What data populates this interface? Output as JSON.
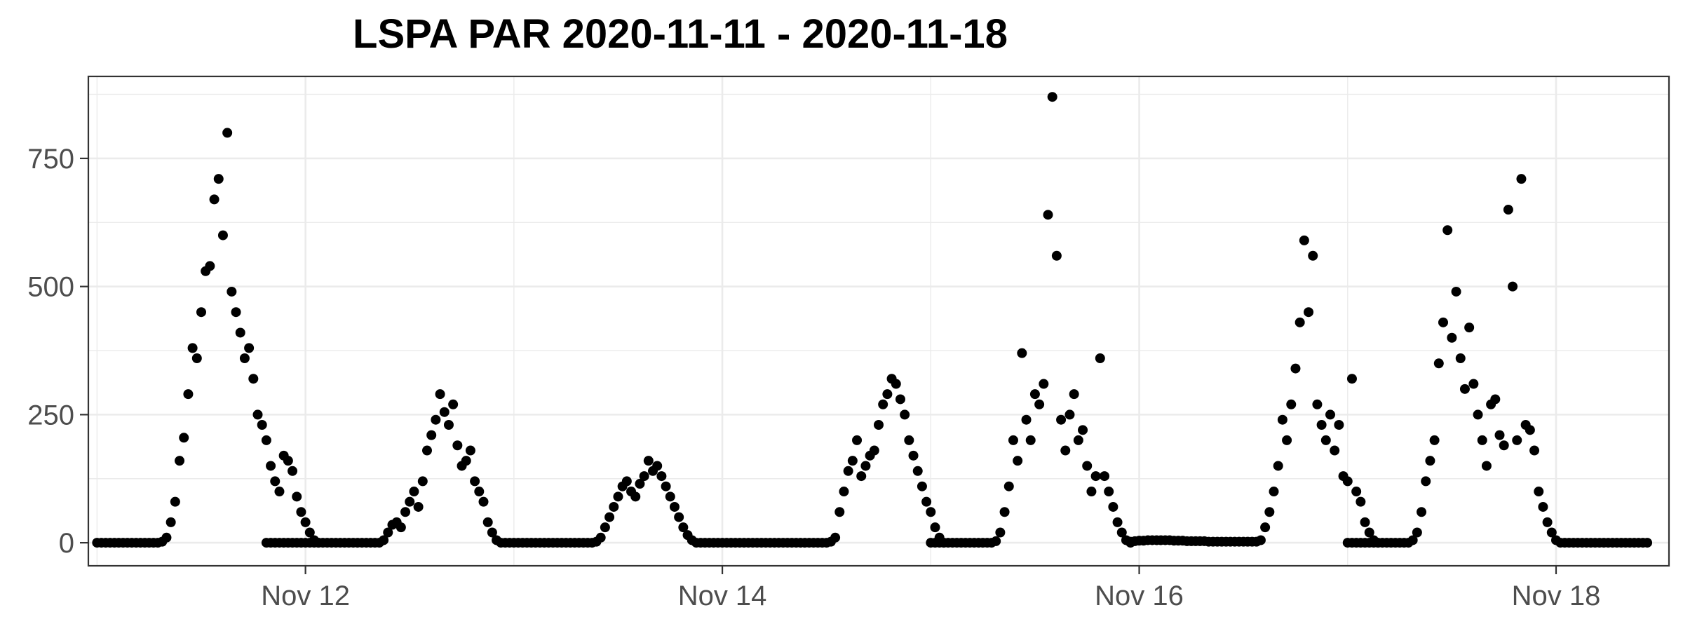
{
  "chart_data": {
    "type": "scatter",
    "title": "LSPA PAR 2020-11-11 - 2020-11-18",
    "xlabel": "",
    "ylabel": "",
    "x_axis": {
      "kind": "date",
      "range": [
        "2020-11-10T23:00",
        "2020-11-18T13:00"
      ],
      "ticks": [
        {
          "value": "2020-11-12",
          "label": "Nov 12"
        },
        {
          "value": "2020-11-14",
          "label": "Nov 14"
        },
        {
          "value": "2020-11-16",
          "label": "Nov 16"
        },
        {
          "value": "2020-11-18",
          "label": "Nov 18"
        }
      ]
    },
    "y_axis": {
      "range": [
        -45,
        910
      ],
      "ticks": [
        {
          "value": 0,
          "label": "0"
        },
        {
          "value": 250,
          "label": "250"
        },
        {
          "value": 500,
          "label": "500"
        },
        {
          "value": 750,
          "label": "750"
        }
      ]
    },
    "grid": true,
    "legend": "none",
    "point_color": "#000000",
    "series": [
      {
        "x_step_minutes": 30,
        "segments": [
          {
            "start": "2020-11-11T00:00",
            "y": [
              0,
              0,
              0,
              0,
              0,
              0,
              0,
              0,
              0,
              0,
              0,
              0,
              0,
              0,
              0,
              2,
              10,
              40,
              80,
              160,
              205,
              290,
              380,
              360,
              450,
              530,
              540,
              670,
              710,
              600,
              800,
              490,
              450,
              410,
              360,
              380,
              320,
              250,
              230,
              200,
              150,
              120,
              100,
              170,
              160,
              140,
              90,
              60,
              40,
              20,
              5,
              0
            ]
          },
          {
            "start": "2020-11-11T19:30",
            "y": [
              0,
              0,
              0,
              0,
              0,
              0,
              0,
              0,
              0,
              0,
              0,
              0,
              0,
              0,
              0,
              0,
              0,
              0,
              0,
              0,
              0,
              0,
              0,
              0,
              0,
              0,
              0,
              5,
              20,
              35,
              40,
              30,
              60,
              80,
              100,
              70,
              120,
              180,
              210,
              240,
              290,
              255,
              230,
              270,
              190,
              150,
              160,
              180,
              120,
              100,
              80,
              40,
              20,
              5,
              0
            ]
          },
          {
            "start": "2020-11-12T23:00",
            "y": [
              0,
              0,
              0,
              0,
              0,
              0,
              0,
              0,
              0,
              0,
              0,
              0,
              0,
              0,
              0,
              0,
              0,
              0,
              0,
              0,
              0,
              2,
              10,
              30,
              50,
              70,
              90,
              110,
              120,
              100,
              90,
              115,
              130,
              160,
              140,
              150,
              130,
              110,
              90,
              70,
              50,
              30,
              15,
              5,
              0
            ]
          },
          {
            "start": "2020-11-13T21:30",
            "y": [
              0,
              0,
              0,
              0,
              0,
              0,
              0,
              0,
              0,
              0,
              0,
              0,
              0,
              0,
              0,
              0,
              0,
              0,
              0,
              0,
              0,
              0,
              0,
              0,
              0,
              0,
              0,
              0,
              0,
              0,
              2,
              10,
              60,
              100,
              140,
              160,
              200,
              130,
              150,
              170,
              180,
              230,
              270,
              290,
              320,
              310,
              280,
              250,
              200,
              170,
              140,
              110,
              80,
              60,
              30,
              10,
              0
            ]
          },
          {
            "start": "2020-11-15T00:00",
            "y": [
              0,
              0,
              0,
              0,
              0,
              0,
              0,
              0,
              0,
              0,
              0,
              0,
              0,
              0,
              0,
              3,
              20,
              60,
              110,
              200,
              160,
              370,
              240,
              200,
              290,
              270,
              310,
              640,
              870,
              560,
              240,
              180,
              250,
              290,
              200,
              220,
              150,
              100,
              130,
              360,
              130,
              100,
              70,
              40,
              20,
              5,
              0
            ]
          },
          {
            "start": "2020-11-15T23:00",
            "y": [
              2,
              3,
              4,
              4,
              5,
              5,
              5,
              5,
              5,
              5,
              4,
              4,
              4,
              3,
              3,
              3,
              3,
              3,
              2,
              2,
              2,
              2,
              2,
              2,
              2,
              2,
              2,
              2,
              2,
              2,
              5,
              30,
              60,
              100,
              150,
              240,
              200,
              270,
              340,
              430,
              590,
              450,
              560,
              270,
              230,
              200,
              250,
              180,
              230,
              130,
              120,
              320,
              100,
              80,
              40,
              20,
              5,
              0
            ]
          },
          {
            "start": "2020-11-17T00:00",
            "y": [
              0,
              0,
              0,
              0,
              0,
              0,
              0,
              0,
              0,
              0,
              0,
              0,
              0,
              0,
              0,
              5,
              20,
              60,
              120,
              160,
              200,
              350,
              430,
              610,
              400,
              490,
              360,
              300,
              420,
              310,
              250,
              200,
              150,
              270,
              280,
              210,
              190,
              650,
              500,
              200,
              710,
              230,
              220,
              180,
              100,
              70,
              40,
              20,
              5,
              0,
              0,
              0,
              0,
              0,
              0,
              0,
              0,
              0,
              0,
              0,
              0,
              0,
              0,
              0,
              0,
              0,
              0,
              0,
              0,
              0
            ]
          }
        ]
      }
    ]
  }
}
